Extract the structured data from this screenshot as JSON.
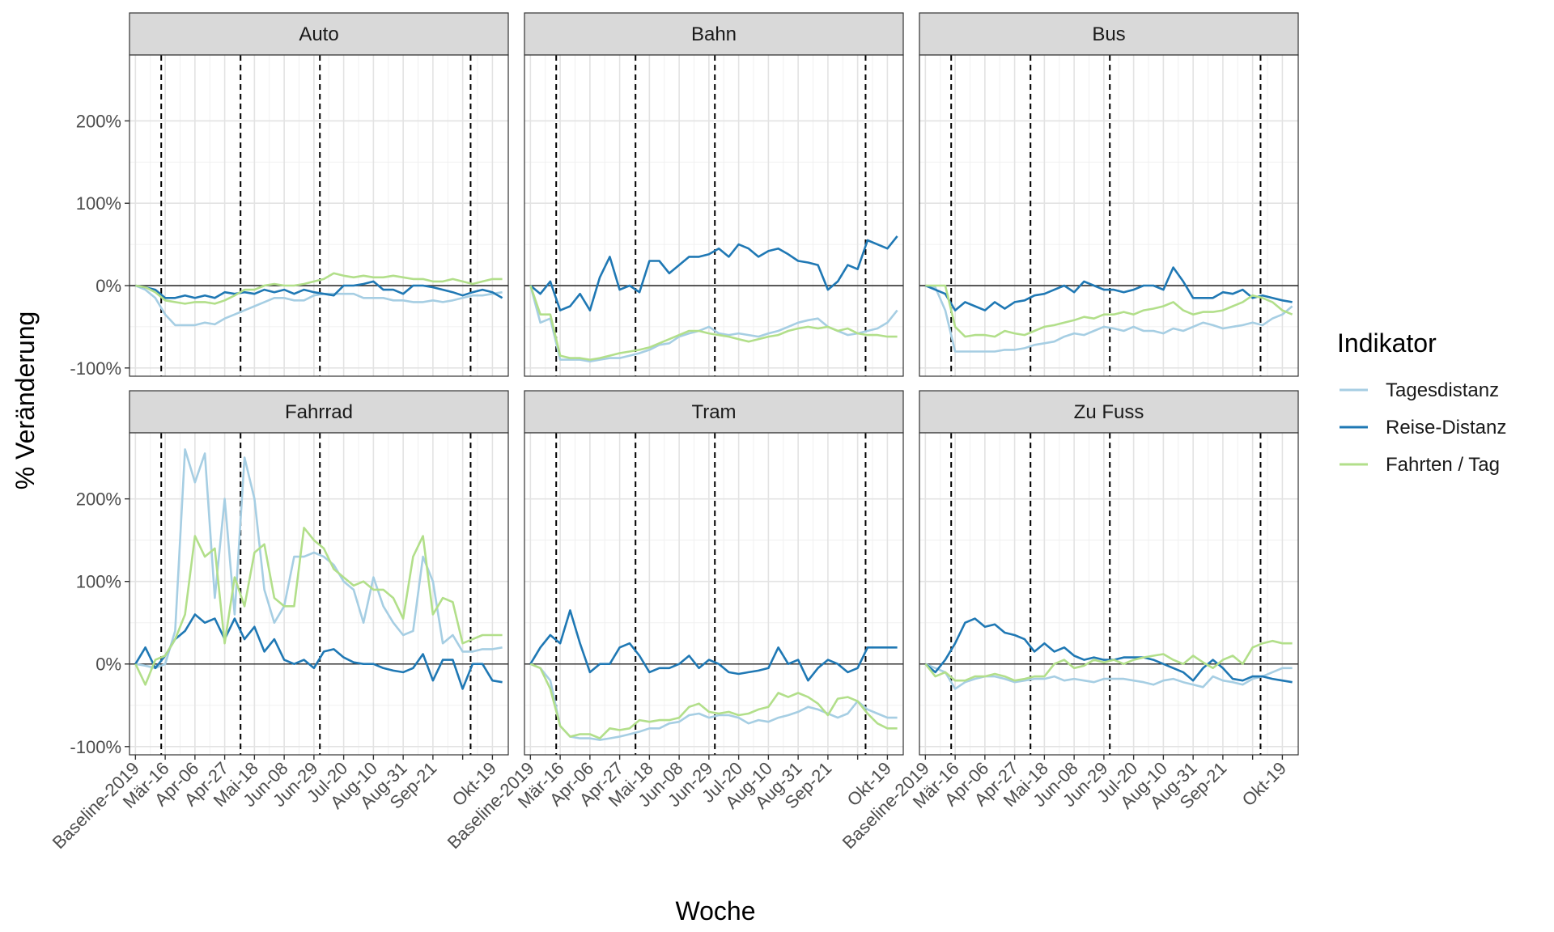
{
  "chart_data": {
    "type": "line",
    "ylabel": "% Veränderung",
    "xlabel": "Woche",
    "ylim": [
      -110,
      280
    ],
    "y_ticks": [
      -100,
      0,
      100,
      200
    ],
    "y_tick_labels": [
      "-100%",
      "0%",
      "100%",
      "200%"
    ],
    "x_ticks": [
      0,
      3,
      6,
      9,
      12,
      15,
      18,
      21,
      24,
      27,
      30,
      33,
      36
    ],
    "x_tick_labels": [
      "Baseline-2019",
      "Mär-16",
      "Apr-06",
      "Apr-27",
      "Mai-18",
      "Jun-08",
      "Jun-29",
      "Jul-20",
      "Aug-10",
      "Aug-31",
      "Sep-21",
      "",
      "Okt-19"
    ],
    "xlim": [
      -0.6,
      37.6
    ],
    "vlines": [
      2.6,
      10.6,
      18.6,
      33.8
    ],
    "grid": true,
    "legend_position": "right",
    "legend_title": "Indikator",
    "series_styles": [
      {
        "name": "Tagesdistanz",
        "color": "#a6cee3"
      },
      {
        "name": "Reise-Distanz",
        "color": "#1f78b4"
      },
      {
        "name": "Fahrten / Tag",
        "color": "#b2df8a"
      }
    ],
    "panels": [
      {
        "title": "Auto",
        "series": [
          {
            "name": "Tagesdistanz",
            "values": [
              0,
              -5,
              -15,
              -35,
              -48,
              -48,
              -48,
              -45,
              -47,
              -40,
              -35,
              -30,
              -25,
              -20,
              -15,
              -15,
              -18,
              -18,
              -12,
              -10,
              -10,
              -10,
              -10,
              -15,
              -15,
              -15,
              -18,
              -18,
              -20,
              -20,
              -18,
              -20,
              -18,
              -15,
              -12,
              -12,
              -10,
              -8
            ]
          },
          {
            "name": "Reise-Distanz",
            "values": [
              0,
              -2,
              -5,
              -15,
              -15,
              -12,
              -15,
              -12,
              -15,
              -8,
              -10,
              -8,
              -10,
              -5,
              -8,
              -5,
              -10,
              -5,
              -8,
              -10,
              -12,
              0,
              0,
              2,
              5,
              -5,
              -5,
              -10,
              0,
              0,
              -2,
              -5,
              -8,
              -12,
              -8,
              -5,
              -8,
              -15
            ]
          },
          {
            "name": "Fahrten / Tag",
            "values": [
              0,
              -2,
              -8,
              -18,
              -20,
              -22,
              -20,
              -20,
              -22,
              -18,
              -12,
              -5,
              -5,
              0,
              2,
              0,
              0,
              2,
              5,
              8,
              15,
              12,
              10,
              12,
              10,
              10,
              12,
              10,
              8,
              8,
              5,
              5,
              8,
              5,
              2,
              5,
              8,
              8
            ]
          }
        ]
      },
      {
        "title": "Bahn",
        "series": [
          {
            "name": "Tagesdistanz",
            "values": [
              0,
              -45,
              -40,
              -90,
              -90,
              -90,
              -92,
              -90,
              -88,
              -88,
              -85,
              -82,
              -78,
              -72,
              -70,
              -62,
              -58,
              -55,
              -50,
              -58,
              -60,
              -58,
              -60,
              -62,
              -58,
              -55,
              -50,
              -45,
              -42,
              -40,
              -50,
              -55,
              -60,
              -58,
              -55,
              -52,
              -45,
              -30
            ]
          },
          {
            "name": "Reise-Distanz",
            "values": [
              0,
              -10,
              5,
              -30,
              -25,
              -10,
              -30,
              10,
              35,
              -5,
              0,
              -8,
              30,
              30,
              15,
              25,
              35,
              35,
              38,
              45,
              35,
              50,
              45,
              35,
              42,
              45,
              38,
              30,
              28,
              25,
              -5,
              5,
              25,
              20,
              55,
              50,
              45,
              60
            ]
          },
          {
            "name": "Fahrten / Tag",
            "values": [
              0,
              -35,
              -35,
              -85,
              -88,
              -88,
              -90,
              -88,
              -85,
              -82,
              -80,
              -78,
              -75,
              -70,
              -65,
              -60,
              -55,
              -55,
              -58,
              -60,
              -62,
              -65,
              -68,
              -65,
              -62,
              -60,
              -55,
              -52,
              -50,
              -52,
              -50,
              -55,
              -52,
              -58,
              -60,
              -60,
              -62,
              -62
            ]
          }
        ]
      },
      {
        "title": "Bus",
        "series": [
          {
            "name": "Tagesdistanz",
            "values": [
              0,
              -2,
              -30,
              -80,
              -80,
              -80,
              -80,
              -80,
              -78,
              -78,
              -76,
              -72,
              -70,
              -68,
              -62,
              -58,
              -60,
              -55,
              -50,
              -52,
              -55,
              -50,
              -55,
              -55,
              -58,
              -52,
              -55,
              -50,
              -45,
              -48,
              -52,
              -50,
              -48,
              -45,
              -48,
              -40,
              -35,
              -25
            ]
          },
          {
            "name": "Reise-Distanz",
            "values": [
              0,
              -5,
              -10,
              -30,
              -20,
              -25,
              -30,
              -20,
              -28,
              -20,
              -18,
              -12,
              -10,
              -5,
              0,
              -8,
              5,
              0,
              -5,
              -5,
              -8,
              -5,
              0,
              0,
              -5,
              22,
              5,
              -15,
              -15,
              -15,
              -8,
              -10,
              -5,
              -15,
              -12,
              -15,
              -18,
              -20
            ]
          },
          {
            "name": "Fahrten / Tag",
            "values": [
              0,
              0,
              0,
              -50,
              -62,
              -60,
              -60,
              -62,
              -55,
              -58,
              -60,
              -55,
              -50,
              -48,
              -45,
              -42,
              -38,
              -40,
              -35,
              -35,
              -32,
              -35,
              -30,
              -28,
              -25,
              -20,
              -30,
              -35,
              -32,
              -32,
              -30,
              -25,
              -20,
              -12,
              -15,
              -20,
              -30,
              -35
            ]
          }
        ]
      },
      {
        "title": "Fahrrad",
        "series": [
          {
            "name": "Tagesdistanz",
            "values": [
              0,
              -2,
              -5,
              0,
              40,
              260,
              220,
              255,
              80,
              200,
              60,
              250,
              200,
              90,
              50,
              70,
              130,
              130,
              135,
              130,
              120,
              100,
              90,
              50,
              105,
              70,
              50,
              35,
              40,
              130,
              100,
              25,
              35,
              15,
              15,
              18,
              18,
              20
            ]
          },
          {
            "name": "Reise-Distanz",
            "values": [
              0,
              20,
              -5,
              10,
              30,
              40,
              60,
              50,
              55,
              30,
              55,
              30,
              45,
              15,
              30,
              5,
              0,
              5,
              -5,
              15,
              18,
              8,
              2,
              0,
              0,
              -5,
              -8,
              -10,
              -5,
              12,
              -20,
              5,
              5,
              -30,
              0,
              0,
              -20,
              -22
            ]
          },
          {
            "name": "Fahrten / Tag",
            "values": [
              0,
              -25,
              5,
              10,
              30,
              60,
              155,
              130,
              140,
              25,
              105,
              70,
              135,
              145,
              80,
              70,
              70,
              165,
              150,
              140,
              115,
              105,
              95,
              100,
              90,
              90,
              80,
              55,
              130,
              155,
              60,
              80,
              75,
              25,
              30,
              35,
              35,
              35
            ]
          }
        ]
      },
      {
        "title": "Tram",
        "series": [
          {
            "name": "Tagesdistanz",
            "values": [
              0,
              -5,
              -20,
              -75,
              -88,
              -90,
              -90,
              -92,
              -90,
              -88,
              -85,
              -82,
              -78,
              -78,
              -72,
              -70,
              -62,
              -60,
              -65,
              -62,
              -62,
              -65,
              -72,
              -68,
              -70,
              -65,
              -62,
              -58,
              -52,
              -55,
              -60,
              -65,
              -60,
              -45,
              -55,
              -60,
              -65,
              -65
            ]
          },
          {
            "name": "Reise-Distanz",
            "values": [
              0,
              20,
              35,
              25,
              65,
              25,
              -10,
              0,
              0,
              20,
              25,
              10,
              -10,
              -5,
              -5,
              0,
              10,
              -5,
              5,
              0,
              -10,
              -12,
              -10,
              -8,
              -5,
              20,
              0,
              5,
              -20,
              -5,
              5,
              0,
              -10,
              -5,
              20,
              20,
              20,
              20
            ]
          },
          {
            "name": "Fahrten / Tag",
            "values": [
              0,
              -5,
              -30,
              -75,
              -88,
              -85,
              -85,
              -90,
              -78,
              -80,
              -78,
              -68,
              -70,
              -68,
              -68,
              -65,
              -52,
              -48,
              -58,
              -60,
              -58,
              -62,
              -60,
              -55,
              -52,
              -35,
              -40,
              -35,
              -40,
              -48,
              -62,
              -42,
              -40,
              -45,
              -60,
              -72,
              -78,
              -78
            ]
          }
        ]
      },
      {
        "title": "Zu Fuss",
        "series": [
          {
            "name": "Tagesdistanz",
            "values": [
              0,
              -5,
              -10,
              -30,
              -22,
              -18,
              -15,
              -15,
              -18,
              -22,
              -20,
              -18,
              -18,
              -15,
              -20,
              -18,
              -20,
              -22,
              -18,
              -18,
              -18,
              -20,
              -22,
              -25,
              -20,
              -18,
              -22,
              -25,
              -28,
              -15,
              -20,
              -22,
              -25,
              -18,
              -15,
              -10,
              -5,
              -5
            ]
          },
          {
            "name": "Reise-Distanz",
            "values": [
              0,
              -10,
              5,
              25,
              50,
              55,
              45,
              48,
              38,
              35,
              30,
              15,
              25,
              15,
              20,
              10,
              5,
              8,
              5,
              5,
              8,
              8,
              8,
              5,
              0,
              -5,
              -10,
              -20,
              -5,
              5,
              -5,
              -18,
              -20,
              -15,
              -15,
              -18,
              -20,
              -22
            ]
          },
          {
            "name": "Fahrten / Tag",
            "values": [
              0,
              -15,
              -10,
              -20,
              -20,
              -15,
              -15,
              -12,
              -15,
              -20,
              -18,
              -15,
              -15,
              0,
              5,
              -5,
              -2,
              5,
              2,
              5,
              0,
              5,
              8,
              10,
              12,
              5,
              0,
              10,
              2,
              -5,
              5,
              10,
              0,
              20,
              25,
              28,
              25,
              25
            ]
          }
        ]
      }
    ]
  }
}
